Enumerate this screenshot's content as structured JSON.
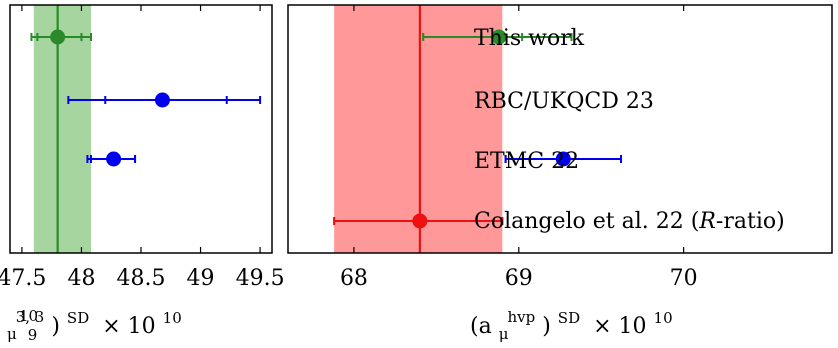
{
  "chart_data": [
    {
      "type": "scatter",
      "title": "",
      "xlabel": {
        "frac_num": "10",
        "frac_den": "9",
        "base": "(a",
        "sub": "μ",
        "sup": "3, 3",
        "close": ")",
        "sup2": "SD",
        "times": "× 10",
        "exp": "10"
      },
      "xlim": [
        47.4,
        49.6
      ],
      "xticks": [
        47.5,
        48,
        48.5,
        49,
        49.5
      ],
      "xtick_labels": [
        "47.5",
        "48",
        "48.5",
        "49",
        "49.5"
      ],
      "band": {
        "center": 47.8,
        "low": 47.6,
        "high": 48.08,
        "color": "#a6d5a0",
        "line_color": "#2a8a2a"
      },
      "points": [
        {
          "row": 0,
          "value": 47.8,
          "err_stat_low": 47.63,
          "err_stat_high": 48.0,
          "err_low": 47.58,
          "err_high": 48.08,
          "color": "#2a8a2a"
        },
        {
          "row": 1,
          "value": 48.68,
          "err_stat_low": 48.2,
          "err_stat_high": 49.22,
          "err_low": 47.89,
          "err_high": 49.5,
          "color": "#0000ee"
        },
        {
          "row": 2,
          "value": 48.27,
          "err_stat_low": 48.08,
          "err_stat_high": 48.45,
          "err_low": 48.05,
          "err_high": 48.45,
          "color": "#0000ee"
        }
      ]
    },
    {
      "type": "scatter",
      "title": "",
      "xlabel": {
        "base": "(a",
        "sub": "μ",
        "sup": "hvp",
        "close": ")",
        "sup2": "SD",
        "times": "× 10",
        "exp": "10"
      },
      "xlim": [
        67.6,
        70.9
      ],
      "xticks": [
        68,
        69,
        70
      ],
      "xtick_labels": [
        "68",
        "69",
        "70"
      ],
      "band": {
        "center": 68.4,
        "low": 67.88,
        "high": 68.9,
        "color": "#ff9999",
        "line_color": "#ee1111"
      },
      "points": [
        {
          "row": 0,
          "value": 68.88,
          "err_stat_low": 68.42,
          "err_stat_high": 69.02,
          "err_low": 68.42,
          "err_high": 69.32,
          "color": "#2a8a2a"
        },
        {
          "row": 2,
          "value": 69.27,
          "err_stat_low": 68.92,
          "err_stat_high": 69.62,
          "err_low": 68.92,
          "err_high": 69.62,
          "color": "#0000ee"
        },
        {
          "row": 3,
          "value": 68.4,
          "err_stat_low": 67.88,
          "err_stat_high": 68.9,
          "err_low": 67.88,
          "err_high": 68.9,
          "color": "#ee1111"
        }
      ],
      "row_labels": [
        "This work",
        "RBC/UKQCD 23",
        "ETMC 22",
        "Colangelo et al. 22 (",
        "R",
        "-ratio)"
      ]
    }
  ]
}
